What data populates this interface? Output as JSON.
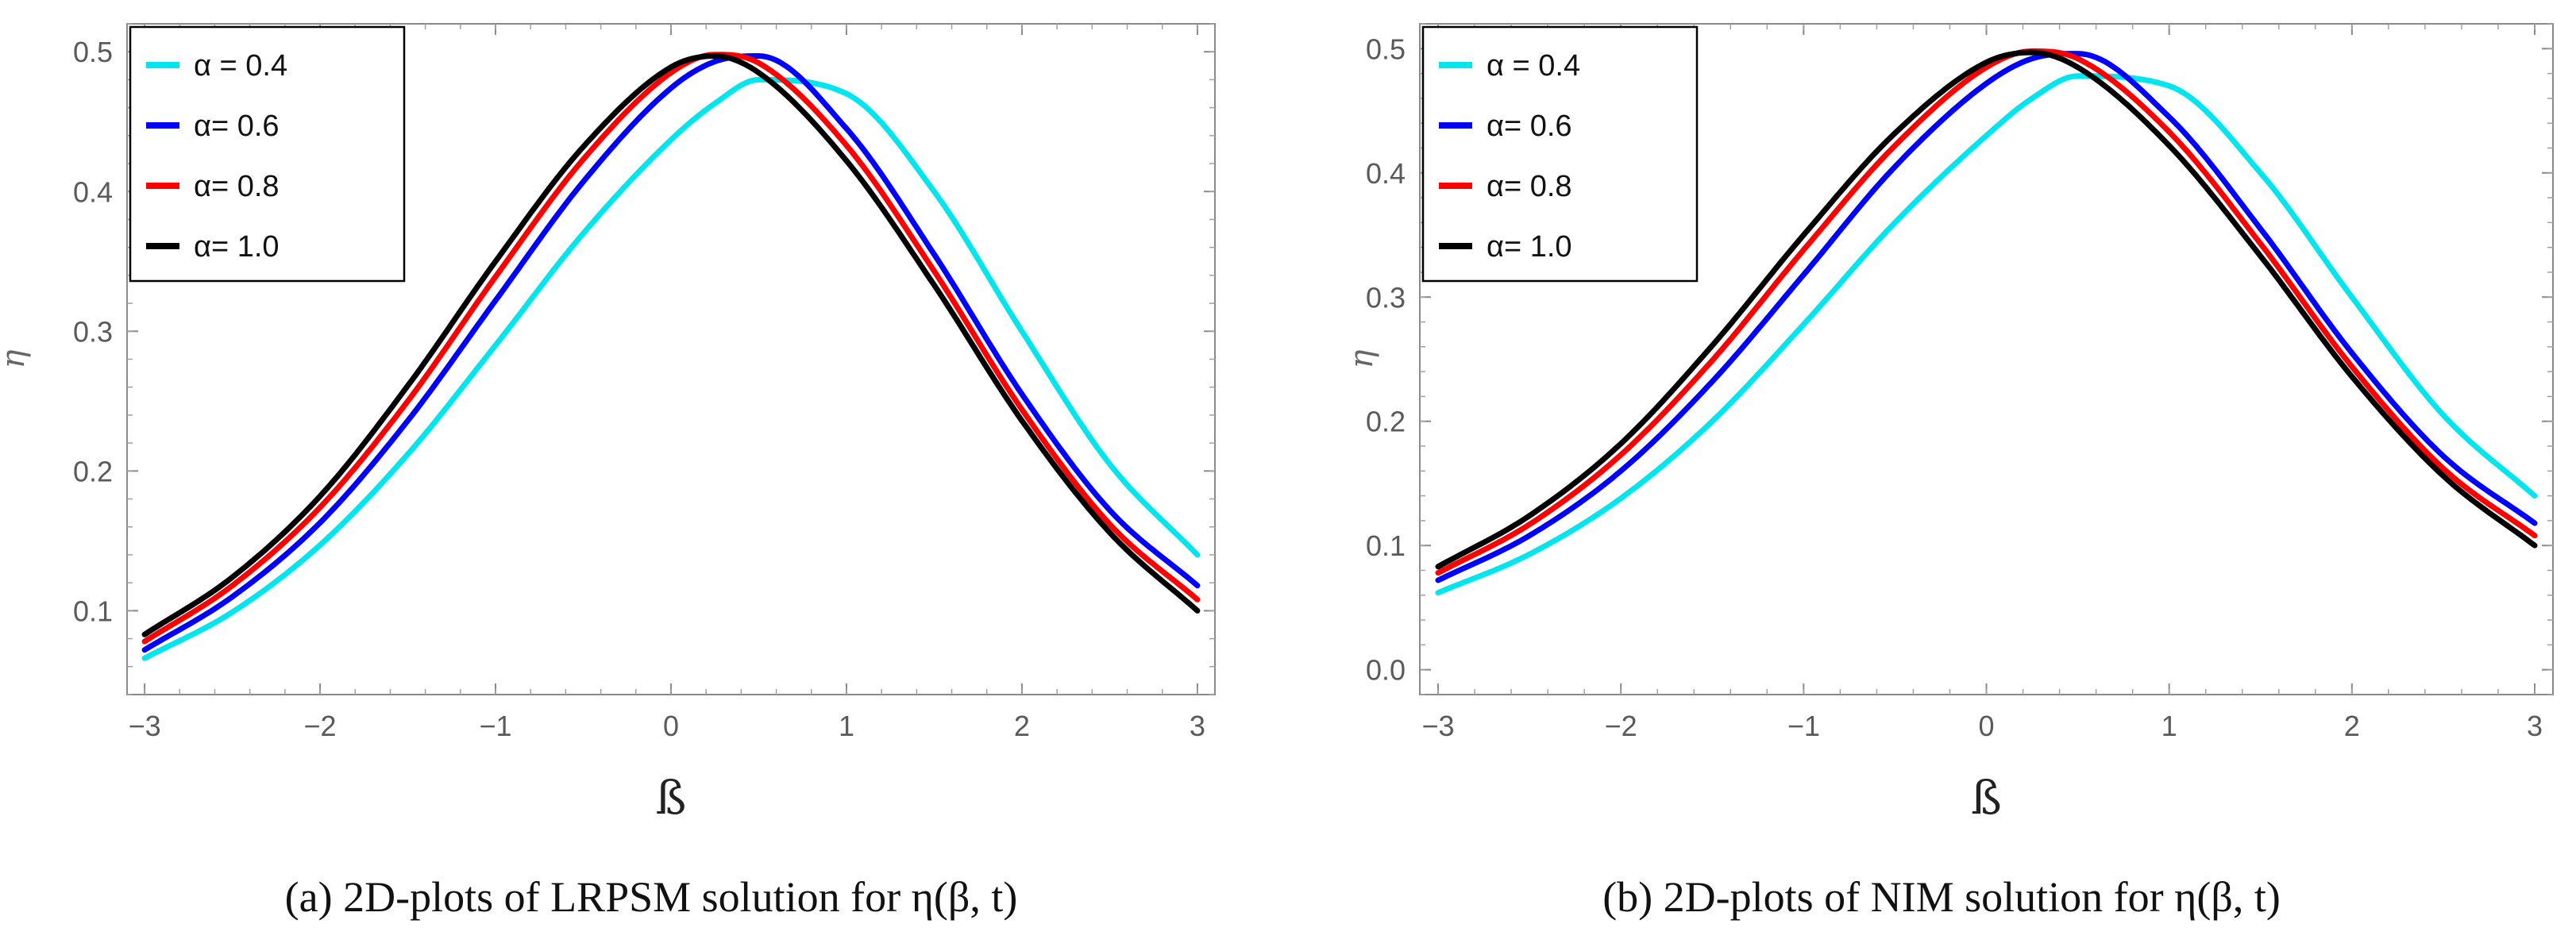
{
  "chart_data": [
    {
      "type": "line",
      "caption": "(a)  2D-plots of LRPSM solution for η(β, t)",
      "xlabel": "ß",
      "ylabel": "η",
      "xlim": [
        -3.1,
        3.1
      ],
      "ylim": [
        0.04,
        0.52
      ],
      "xticks": [
        -3,
        -2,
        -1,
        0,
        1,
        2,
        3
      ],
      "xtick_labels": [
        "−3",
        "−2",
        "−1",
        "0",
        "1",
        "2",
        "3"
      ],
      "yticks": [
        0.1,
        0.2,
        0.3,
        0.4,
        0.5
      ],
      "ytick_labels": [
        "0.1",
        "0.2",
        "0.3",
        "0.4",
        "0.5"
      ],
      "grid": false,
      "legend_position": "top-left",
      "x": [
        -3.0,
        -2.5,
        -2.0,
        -1.5,
        -1.0,
        -0.5,
        0.0,
        0.25,
        0.5,
        1.0,
        1.5,
        2.0,
        2.5,
        3.0
      ],
      "series": [
        {
          "name": "α = 0.4",
          "color": "#00e5ee",
          "values": [
            0.066,
            0.099,
            0.147,
            0.212,
            0.29,
            0.37,
            0.437,
            0.463,
            0.48,
            0.47,
            0.4,
            0.3,
            0.205,
            0.14
          ]
        },
        {
          "name": "α= 0.6",
          "color": "#0000ff",
          "values": [
            0.072,
            0.11,
            0.163,
            0.236,
            0.322,
            0.407,
            0.474,
            0.493,
            0.497,
            0.445,
            0.355,
            0.255,
            0.172,
            0.118
          ]
        },
        {
          "name": "α= 0.8",
          "color": "#ff0000",
          "values": [
            0.078,
            0.118,
            0.174,
            0.25,
            0.339,
            0.423,
            0.485,
            0.498,
            0.492,
            0.433,
            0.343,
            0.244,
            0.162,
            0.108
          ]
        },
        {
          "name": "α= 1.0",
          "color": "#000000",
          "values": [
            0.083,
            0.124,
            0.182,
            0.261,
            0.35,
            0.432,
            0.489,
            0.497,
            0.485,
            0.422,
            0.333,
            0.236,
            0.156,
            0.1
          ]
        }
      ]
    },
    {
      "type": "line",
      "caption": "(b)  2D-plots of NIM solution for η(β, t)",
      "xlabel": "ß",
      "ylabel": "η",
      "xlim": [
        -3.1,
        3.1
      ],
      "ylim": [
        -0.02,
        0.52
      ],
      "xticks": [
        -3,
        -2,
        -1,
        0,
        1,
        2,
        3
      ],
      "xtick_labels": [
        "−3",
        "−2",
        "−1",
        "0",
        "1",
        "2",
        "3"
      ],
      "yticks": [
        0.0,
        0.1,
        0.2,
        0.3,
        0.4,
        0.5
      ],
      "ytick_labels": [
        "0.0",
        "0.1",
        "0.2",
        "0.3",
        "0.4",
        "0.5"
      ],
      "grid": false,
      "legend_position": "top-left",
      "x": [
        -3.0,
        -2.5,
        -2.0,
        -1.5,
        -1.0,
        -0.5,
        0.0,
        0.25,
        0.5,
        1.0,
        1.5,
        2.0,
        2.5,
        3.0
      ],
      "series": [
        {
          "name": "α = 0.4",
          "color": "#00e5ee",
          "values": [
            0.062,
            0.093,
            0.138,
            0.2,
            0.278,
            0.36,
            0.43,
            0.46,
            0.478,
            0.47,
            0.4,
            0.3,
            0.205,
            0.14
          ]
        },
        {
          "name": "α= 0.6",
          "color": "#0000ff",
          "values": [
            0.072,
            0.108,
            0.16,
            0.232,
            0.318,
            0.405,
            0.472,
            0.492,
            0.496,
            0.445,
            0.355,
            0.255,
            0.172,
            0.118
          ]
        },
        {
          "name": "α= 0.8",
          "color": "#ff0000",
          "values": [
            0.078,
            0.117,
            0.173,
            0.249,
            0.338,
            0.422,
            0.485,
            0.498,
            0.492,
            0.433,
            0.343,
            0.244,
            0.162,
            0.108
          ]
        },
        {
          "name": "α= 1.0",
          "color": "#000000",
          "values": [
            0.083,
            0.124,
            0.182,
            0.261,
            0.35,
            0.432,
            0.489,
            0.497,
            0.485,
            0.422,
            0.333,
            0.236,
            0.156,
            0.1
          ]
        }
      ]
    }
  ]
}
